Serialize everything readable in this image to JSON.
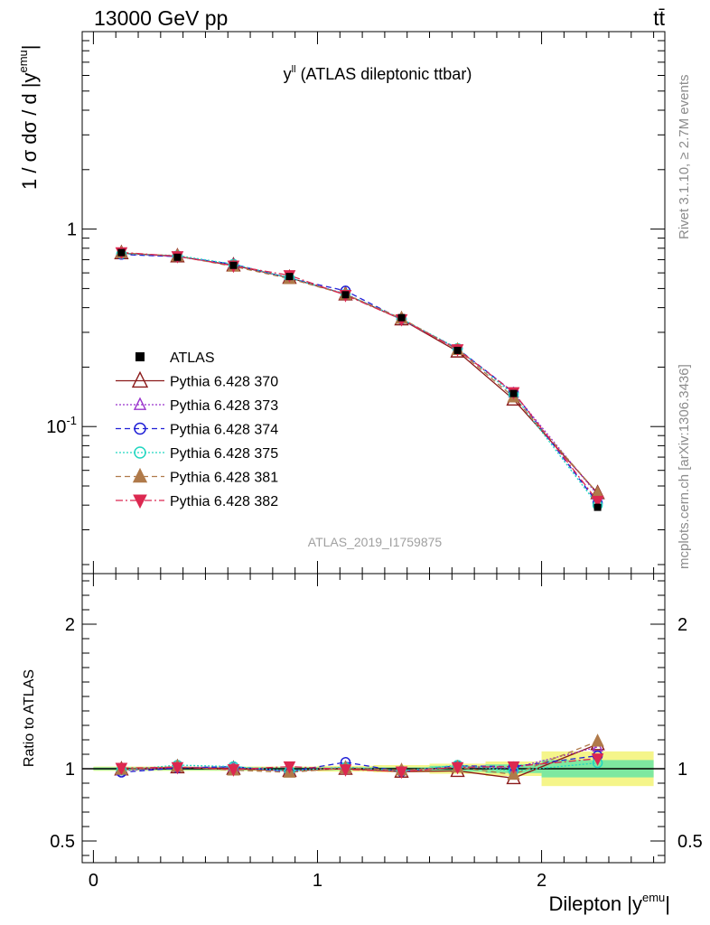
{
  "header": {
    "energy_label": "13000 GeV pp",
    "process_label": "tt̄"
  },
  "side_text": {
    "rivet": "Rivet 3.1.10, ≥ 2.7M events",
    "mcplots": "mcplots.cern.ch [arXiv:1306.3436]"
  },
  "chart_data": [
    {
      "type": "scatter",
      "panel": "main",
      "title_main": "y",
      "title_sup": "ll",
      "title_rest": " (ATLAS dileptonic ttbar)",
      "ylabel_main": "1 / σ  dσ / d |y",
      "ylabel_sup": "emu",
      "ylabel_end": "|",
      "analysis_label": "ATLAS_2019_I1759875",
      "y_scale": "log",
      "xlim": [
        -0.05,
        2.55
      ],
      "ylim": [
        0.018,
        10
      ],
      "y_ticks": [
        {
          "value": 1,
          "label": "1"
        },
        {
          "value": 0.1,
          "label": "10^-1"
        }
      ],
      "x": [
        0.125,
        0.375,
        0.625,
        0.875,
        1.125,
        1.375,
        1.625,
        1.875,
        2.25
      ],
      "x_edges": [
        0,
        0.25,
        0.5,
        0.75,
        1.0,
        1.25,
        1.5,
        1.75,
        2.0,
        2.5
      ],
      "legend_position": "left-middle",
      "series": [
        {
          "name": "ATLAS",
          "color": "#000000",
          "marker": "square-filled",
          "line": "none",
          "values": [
            0.76,
            0.72,
            0.655,
            0.575,
            0.465,
            0.356,
            0.243,
            0.147,
            0.039
          ]
        },
        {
          "name": "Pythia 6.428 370",
          "color": "#8b1a1a",
          "marker": "triangle-up-open",
          "line": "solid",
          "values": [
            0.755,
            0.728,
            0.655,
            0.567,
            0.467,
            0.349,
            0.24,
            0.137,
            0.046
          ]
        },
        {
          "name": "Pythia 6.428 373",
          "color": "#9932cc",
          "marker": "triangle-up-open-small",
          "line": "dotted",
          "values": [
            0.75,
            0.726,
            0.662,
            0.566,
            0.47,
            0.35,
            0.246,
            0.148,
            0.045
          ]
        },
        {
          "name": "Pythia 6.428 374",
          "color": "#1f1fd6",
          "marker": "circle-open",
          "line": "dashed",
          "values": [
            0.743,
            0.726,
            0.664,
            0.563,
            0.487,
            0.349,
            0.248,
            0.149,
            0.041
          ]
        },
        {
          "name": "Pythia 6.428 375",
          "color": "#20d6c0",
          "marker": "circle-open",
          "line": "dotted",
          "values": [
            0.75,
            0.735,
            0.664,
            0.566,
            0.469,
            0.351,
            0.249,
            0.145,
            0.04
          ]
        },
        {
          "name": "Pythia 6.428 381",
          "color": "#b07a4a",
          "marker": "triangle-up-filled",
          "line": "dashed",
          "values": [
            0.758,
            0.73,
            0.647,
            0.561,
            0.467,
            0.353,
            0.245,
            0.141,
            0.046
          ]
        },
        {
          "name": "Pythia 6.428 382",
          "color": "#dc2850",
          "marker": "triangle-down-filled",
          "line": "dashdot",
          "values": [
            0.762,
            0.728,
            0.652,
            0.583,
            0.463,
            0.349,
            0.246,
            0.149,
            0.042
          ]
        }
      ]
    },
    {
      "type": "scatter",
      "panel": "ratio",
      "ylabel": "Ratio to ATLAS",
      "xlabel_main": "Dilepton |y",
      "xlabel_sup": "emu",
      "xlabel_end": "|",
      "xlim": [
        -0.05,
        2.55
      ],
      "ylim": [
        0.35,
        2.35
      ],
      "x_ticks": [
        {
          "value": 0,
          "label": "0"
        },
        {
          "value": 1,
          "label": "1"
        },
        {
          "value": 2,
          "label": "2"
        }
      ],
      "y_ticks": [
        {
          "value": 0.5,
          "label": "0.5"
        },
        {
          "value": 1,
          "label": "1"
        },
        {
          "value": 2,
          "label": "2"
        }
      ],
      "x": [
        0.125,
        0.375,
        0.625,
        0.875,
        1.125,
        1.375,
        1.625,
        1.875,
        2.25
      ],
      "x_edges": [
        0,
        0.25,
        0.5,
        0.75,
        1.0,
        1.25,
        1.5,
        1.75,
        2.0,
        2.5
      ],
      "uncertainty_band_stat": [
        0.01,
        0.01,
        0.01,
        0.01,
        0.01,
        0.01,
        0.02,
        0.03,
        0.06
      ],
      "uncertainty_band_total": [
        0.015,
        0.015,
        0.015,
        0.015,
        0.02,
        0.025,
        0.035,
        0.05,
        0.12
      ],
      "band_colors": {
        "stat": "#7ee8a0",
        "total": "#f5f58a"
      },
      "series": [
        {
          "name": "Pythia 6.428 370",
          "values": [
            0.995,
            1.01,
            1.0,
            0.985,
            1.0,
            0.98,
            0.985,
            0.935,
            1.17
          ]
        },
        {
          "name": "Pythia 6.428 373",
          "values": [
            0.985,
            1.01,
            1.01,
            0.985,
            1.01,
            0.985,
            1.01,
            1.005,
            1.15
          ]
        },
        {
          "name": "Pythia 6.428 374",
          "values": [
            0.975,
            1.005,
            1.015,
            0.98,
            1.045,
            0.98,
            1.02,
            1.015,
            1.09
          ]
        },
        {
          "name": "Pythia 6.428 375",
          "values": [
            0.99,
            1.025,
            1.015,
            0.985,
            1.01,
            0.985,
            1.025,
            0.985,
            1.04
          ]
        },
        {
          "name": "Pythia 6.428 381",
          "values": [
            0.995,
            1.015,
            0.99,
            0.975,
            1.005,
            0.99,
            1.01,
            0.96,
            1.19
          ]
        },
        {
          "name": "Pythia 6.428 382",
          "values": [
            1.005,
            1.01,
            0.995,
            1.015,
            0.995,
            0.98,
            1.01,
            1.015,
            1.07
          ]
        }
      ]
    }
  ]
}
